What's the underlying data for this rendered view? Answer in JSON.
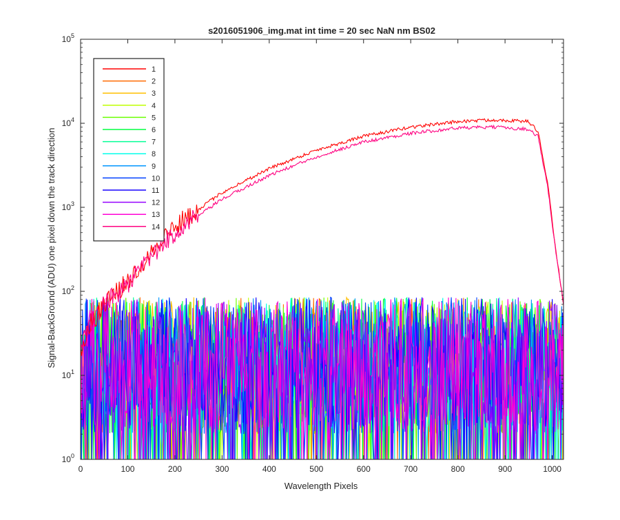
{
  "chart_data": {
    "type": "line",
    "title": "s2016051906_img.mat int time = 20 sec  NaN nm BS02",
    "xlabel": "Wavelength Pixels",
    "ylabel": "Signal-BackGround (ADU) one pixel down the track direction",
    "xlim": [
      0,
      1024
    ],
    "ylim": [
      1,
      100000
    ],
    "yscale": "log",
    "grid": false,
    "legend_position": "top-left",
    "x_ticks": [
      "0",
      "100",
      "200",
      "300",
      "400",
      "500",
      "600",
      "700",
      "800",
      "900",
      "1000"
    ],
    "y_ticks": [
      {
        "base": "10",
        "exp": "0"
      },
      {
        "base": "10",
        "exp": "1"
      },
      {
        "base": "10",
        "exp": "2"
      },
      {
        "base": "10",
        "exp": "3"
      },
      {
        "base": "10",
        "exp": "4"
      },
      {
        "base": "10",
        "exp": "5"
      }
    ],
    "series": [
      {
        "name": "1",
        "color": "#ff0000",
        "profile": [
          [
            0,
            20
          ],
          [
            20,
            40
          ],
          [
            50,
            70
          ],
          [
            100,
            130
          ],
          [
            150,
            300
          ],
          [
            200,
            600
          ],
          [
            300,
            1500
          ],
          [
            400,
            2900
          ],
          [
            500,
            4800
          ],
          [
            600,
            7000
          ],
          [
            700,
            9000
          ],
          [
            800,
            10500
          ],
          [
            880,
            11000
          ],
          [
            950,
            10500
          ],
          [
            970,
            8000
          ],
          [
            990,
            2000
          ],
          [
            1005,
            400
          ],
          [
            1024,
            70
          ]
        ]
      },
      {
        "name": "2",
        "color": "#ff6a00",
        "noise": [
          2,
          85
        ]
      },
      {
        "name": "3",
        "color": "#ffbf00",
        "noise": [
          2,
          85
        ]
      },
      {
        "name": "4",
        "color": "#bfff00",
        "noise": [
          2,
          85
        ]
      },
      {
        "name": "5",
        "color": "#6aff00",
        "noise": [
          2,
          85
        ]
      },
      {
        "name": "6",
        "color": "#00ff40",
        "noise": [
          2,
          85
        ]
      },
      {
        "name": "7",
        "color": "#00ff95",
        "noise": [
          2,
          85
        ]
      },
      {
        "name": "8",
        "color": "#00ffea",
        "noise": [
          2,
          85
        ]
      },
      {
        "name": "9",
        "color": "#0095ff",
        "noise": [
          2,
          85
        ]
      },
      {
        "name": "10",
        "color": "#0040ff",
        "noise": [
          2,
          85
        ]
      },
      {
        "name": "11",
        "color": "#1500ff",
        "noise": [
          2,
          85
        ]
      },
      {
        "name": "12",
        "color": "#9500ff",
        "noise": [
          2,
          85
        ]
      },
      {
        "name": "13",
        "color": "#ff00d5",
        "noise": [
          2,
          85
        ]
      },
      {
        "name": "14",
        "color": "#ff0080",
        "profile": [
          [
            0,
            20
          ],
          [
            20,
            40
          ],
          [
            50,
            70
          ],
          [
            100,
            120
          ],
          [
            150,
            260
          ],
          [
            200,
            500
          ],
          [
            300,
            1250
          ],
          [
            400,
            2400
          ],
          [
            500,
            4000
          ],
          [
            600,
            6000
          ],
          [
            700,
            7600
          ],
          [
            800,
            8800
          ],
          [
            880,
            9000
          ],
          [
            950,
            8500
          ],
          [
            970,
            7000
          ],
          [
            990,
            1800
          ],
          [
            1005,
            380
          ],
          [
            1024,
            70
          ]
        ]
      }
    ]
  }
}
